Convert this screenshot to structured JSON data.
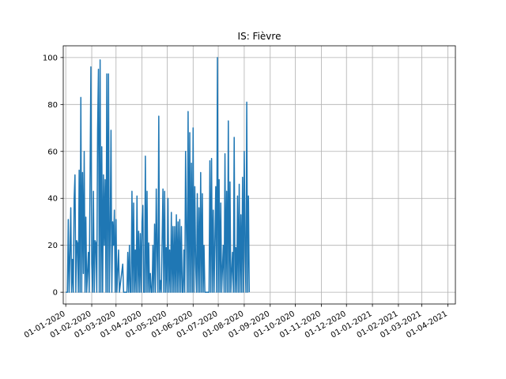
{
  "chart_data": {
    "type": "line",
    "title": "IS: Fièvre",
    "xlabel": "",
    "ylabel": "",
    "x_start": "2019-12-29",
    "x_end": "2021-04-10",
    "ylim": [
      -5,
      105
    ],
    "grid": true,
    "line_color": "#1f77b4",
    "y_ticks": [
      0,
      20,
      40,
      60,
      80,
      100
    ],
    "x_ticks": [
      {
        "date": "2020-01-01",
        "label": "01-01-2020"
      },
      {
        "date": "2020-02-01",
        "label": "01-02-2020"
      },
      {
        "date": "2020-03-01",
        "label": "01-03-2020"
      },
      {
        "date": "2020-04-01",
        "label": "01-04-2020"
      },
      {
        "date": "2020-05-01",
        "label": "01-05-2020"
      },
      {
        "date": "2020-06-01",
        "label": "01-06-2020"
      },
      {
        "date": "2020-07-01",
        "label": "01-07-2020"
      },
      {
        "date": "2020-08-01",
        "label": "01-08-2020"
      },
      {
        "date": "2020-09-01",
        "label": "01-09-2020"
      },
      {
        "date": "2020-10-01",
        "label": "01-10-2020"
      },
      {
        "date": "2020-11-01",
        "label": "01-11-2020"
      },
      {
        "date": "2020-12-01",
        "label": "01-12-2020"
      },
      {
        "date": "2021-01-01",
        "label": "01-01-2021"
      },
      {
        "date": "2021-02-01",
        "label": "01-02-2021"
      },
      {
        "date": "2021-03-01",
        "label": "01-03-2021"
      },
      {
        "date": "2021-04-01",
        "label": "01-04-2021"
      }
    ],
    "series": [
      {
        "points": [
          [
            "2020-01-01",
            0
          ],
          [
            "2020-01-03",
            0
          ],
          [
            "2020-01-04",
            31
          ],
          [
            "2020-01-05",
            0
          ],
          [
            "2020-01-06",
            16
          ],
          [
            "2020-01-07",
            36
          ],
          [
            "2020-01-08",
            0
          ],
          [
            "2020-01-09",
            14
          ],
          [
            "2020-01-10",
            0
          ],
          [
            "2020-01-11",
            40
          ],
          [
            "2020-01-12",
            50
          ],
          [
            "2020-01-13",
            0
          ],
          [
            "2020-01-14",
            22
          ],
          [
            "2020-01-15",
            21
          ],
          [
            "2020-01-16",
            0
          ],
          [
            "2020-01-17",
            52
          ],
          [
            "2020-01-18",
            0
          ],
          [
            "2020-01-19",
            83
          ],
          [
            "2020-01-20",
            0
          ],
          [
            "2020-01-21",
            51
          ],
          [
            "2020-01-22",
            8
          ],
          [
            "2020-01-23",
            60
          ],
          [
            "2020-01-24",
            0
          ],
          [
            "2020-01-25",
            32
          ],
          [
            "2020-01-26",
            0
          ],
          [
            "2020-01-28",
            17
          ],
          [
            "2020-01-29",
            0
          ],
          [
            "2020-01-31",
            96
          ],
          [
            "2020-02-01",
            12
          ],
          [
            "2020-02-02",
            0
          ],
          [
            "2020-02-03",
            43
          ],
          [
            "2020-02-04",
            0
          ],
          [
            "2020-02-05",
            22
          ],
          [
            "2020-02-06",
            21
          ],
          [
            "2020-02-07",
            0
          ],
          [
            "2020-02-08",
            69
          ],
          [
            "2020-02-09",
            95
          ],
          [
            "2020-02-10",
            0
          ],
          [
            "2020-02-11",
            99
          ],
          [
            "2020-02-12",
            0
          ],
          [
            "2020-02-13",
            62
          ],
          [
            "2020-02-14",
            0
          ],
          [
            "2020-02-15",
            50
          ],
          [
            "2020-02-16",
            20
          ],
          [
            "2020-02-17",
            48
          ],
          [
            "2020-02-18",
            0
          ],
          [
            "2020-02-19",
            93
          ],
          [
            "2020-02-20",
            0
          ],
          [
            "2020-02-21",
            93
          ],
          [
            "2020-02-22",
            0
          ],
          [
            "2020-02-23",
            25
          ],
          [
            "2020-02-24",
            69
          ],
          [
            "2020-02-25",
            0
          ],
          [
            "2020-02-26",
            30
          ],
          [
            "2020-02-27",
            20
          ],
          [
            "2020-02-28",
            35
          ],
          [
            "2020-02-29",
            0
          ],
          [
            "2020-03-01",
            31
          ],
          [
            "2020-03-02",
            0
          ],
          [
            "2020-03-04",
            18
          ],
          [
            "2020-03-05",
            0
          ],
          [
            "2020-03-09",
            12
          ],
          [
            "2020-03-10",
            0
          ],
          [
            "2020-03-14",
            0
          ],
          [
            "2020-03-15",
            17
          ],
          [
            "2020-03-16",
            0
          ],
          [
            "2020-03-17",
            20
          ],
          [
            "2020-03-18",
            0
          ],
          [
            "2020-03-19",
            0
          ],
          [
            "2020-03-20",
            43
          ],
          [
            "2020-03-21",
            0
          ],
          [
            "2020-03-22",
            38
          ],
          [
            "2020-03-23",
            0
          ],
          [
            "2020-03-24",
            18
          ],
          [
            "2020-03-25",
            0
          ],
          [
            "2020-03-26",
            41
          ],
          [
            "2020-03-27",
            0
          ],
          [
            "2020-03-28",
            26
          ],
          [
            "2020-03-29",
            0
          ],
          [
            "2020-03-30",
            25
          ],
          [
            "2020-03-31",
            0
          ],
          [
            "2020-04-01",
            30
          ],
          [
            "2020-04-02",
            37
          ],
          [
            "2020-04-03",
            0
          ],
          [
            "2020-04-04",
            0
          ],
          [
            "2020-04-05",
            58
          ],
          [
            "2020-04-06",
            0
          ],
          [
            "2020-04-07",
            43
          ],
          [
            "2020-04-08",
            0
          ],
          [
            "2020-04-09",
            21
          ],
          [
            "2020-04-10",
            0
          ],
          [
            "2020-04-11",
            8
          ],
          [
            "2020-04-12",
            0
          ],
          [
            "2020-04-13",
            0
          ],
          [
            "2020-04-14",
            20
          ],
          [
            "2020-04-15",
            0
          ],
          [
            "2020-04-16",
            29
          ],
          [
            "2020-04-17",
            0
          ],
          [
            "2020-04-18",
            44
          ],
          [
            "2020-04-19",
            17
          ],
          [
            "2020-04-20",
            0
          ],
          [
            "2020-04-21",
            75
          ],
          [
            "2020-04-22",
            0
          ],
          [
            "2020-04-23",
            5
          ],
          [
            "2020-04-24",
            0
          ],
          [
            "2020-04-26",
            44
          ],
          [
            "2020-04-27",
            0
          ],
          [
            "2020-04-28",
            43
          ],
          [
            "2020-04-29",
            0
          ],
          [
            "2020-04-30",
            19
          ],
          [
            "2020-05-01",
            0
          ],
          [
            "2020-05-02",
            40
          ],
          [
            "2020-05-03",
            0
          ],
          [
            "2020-05-04",
            18
          ],
          [
            "2020-05-05",
            0
          ],
          [
            "2020-05-06",
            34
          ],
          [
            "2020-05-07",
            0
          ],
          [
            "2020-05-08",
            28
          ],
          [
            "2020-05-09",
            0
          ],
          [
            "2020-05-10",
            28
          ],
          [
            "2020-05-11",
            0
          ],
          [
            "2020-05-12",
            33
          ],
          [
            "2020-05-13",
            0
          ],
          [
            "2020-05-14",
            30
          ],
          [
            "2020-05-15",
            0
          ],
          [
            "2020-05-16",
            31
          ],
          [
            "2020-05-17",
            0
          ],
          [
            "2020-05-18",
            28
          ],
          [
            "2020-05-19",
            0
          ],
          [
            "2020-05-20",
            0
          ],
          [
            "2020-05-21",
            18
          ],
          [
            "2020-05-22",
            0
          ],
          [
            "2020-05-23",
            60
          ],
          [
            "2020-05-24",
            27
          ],
          [
            "2020-05-25",
            0
          ],
          [
            "2020-05-26",
            77
          ],
          [
            "2020-05-27",
            0
          ],
          [
            "2020-05-28",
            68
          ],
          [
            "2020-05-29",
            0
          ],
          [
            "2020-05-30",
            55
          ],
          [
            "2020-05-31",
            0
          ],
          [
            "2020-06-01",
            70
          ],
          [
            "2020-06-02",
            0
          ],
          [
            "2020-06-03",
            45
          ],
          [
            "2020-06-04",
            12
          ],
          [
            "2020-06-05",
            0
          ],
          [
            "2020-06-06",
            42
          ],
          [
            "2020-06-07",
            0
          ],
          [
            "2020-06-08",
            36
          ],
          [
            "2020-06-09",
            0
          ],
          [
            "2020-06-10",
            51
          ],
          [
            "2020-06-11",
            0
          ],
          [
            "2020-06-12",
            42
          ],
          [
            "2020-06-13",
            0
          ],
          [
            "2020-06-14",
            20
          ],
          [
            "2020-06-15",
            0
          ],
          [
            "2020-06-20",
            0
          ],
          [
            "2020-06-21",
            56
          ],
          [
            "2020-06-22",
            0
          ],
          [
            "2020-06-23",
            57
          ],
          [
            "2020-06-24",
            0
          ],
          [
            "2020-06-25",
            35
          ],
          [
            "2020-06-26",
            0
          ],
          [
            "2020-06-28",
            45
          ],
          [
            "2020-06-29",
            0
          ],
          [
            "2020-06-30",
            100
          ],
          [
            "2020-07-01",
            0
          ],
          [
            "2020-07-02",
            48
          ],
          [
            "2020-07-03",
            0
          ],
          [
            "2020-07-04",
            38
          ],
          [
            "2020-07-05",
            0
          ],
          [
            "2020-07-07",
            20
          ],
          [
            "2020-07-08",
            0
          ],
          [
            "2020-07-09",
            59
          ],
          [
            "2020-07-10",
            0
          ],
          [
            "2020-07-11",
            43
          ],
          [
            "2020-07-12",
            0
          ],
          [
            "2020-07-13",
            73
          ],
          [
            "2020-07-14",
            0
          ],
          [
            "2020-07-15",
            47
          ],
          [
            "2020-07-16",
            0
          ],
          [
            "2020-07-18",
            17
          ],
          [
            "2020-07-19",
            0
          ],
          [
            "2020-07-20",
            66
          ],
          [
            "2020-07-21",
            0
          ],
          [
            "2020-07-22",
            19
          ],
          [
            "2020-07-23",
            0
          ],
          [
            "2020-07-24",
            41
          ],
          [
            "2020-07-25",
            0
          ],
          [
            "2020-07-26",
            46
          ],
          [
            "2020-07-27",
            0
          ],
          [
            "2020-07-28",
            33
          ],
          [
            "2020-07-29",
            0
          ],
          [
            "2020-07-30",
            49
          ],
          [
            "2020-07-31",
            0
          ],
          [
            "2020-08-01",
            60
          ],
          [
            "2020-08-02",
            18
          ],
          [
            "2020-08-03",
            0
          ],
          [
            "2020-08-04",
            81
          ],
          [
            "2020-08-05",
            0
          ],
          [
            "2020-08-06",
            41
          ],
          [
            "2020-08-07",
            0
          ]
        ]
      }
    ]
  }
}
